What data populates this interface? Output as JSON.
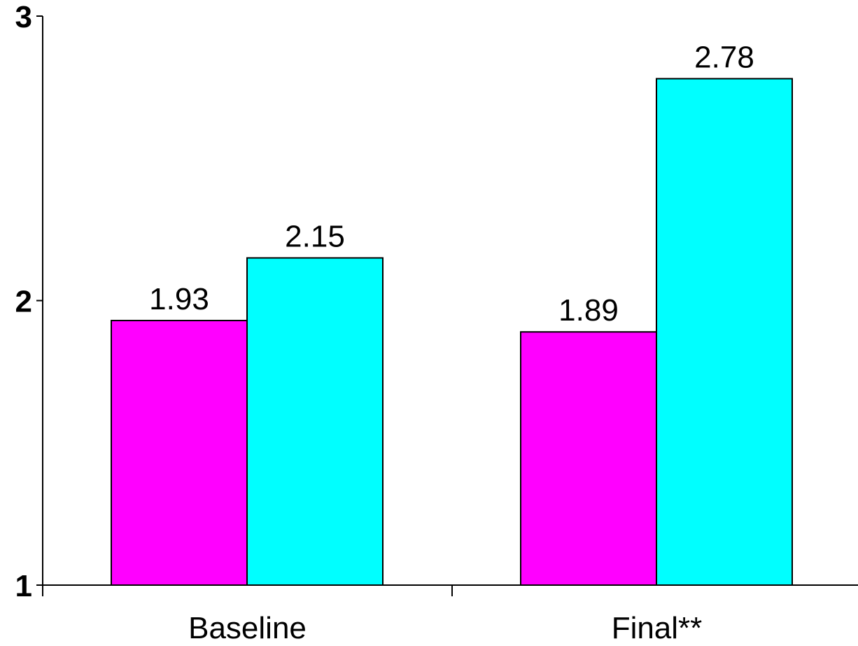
{
  "chart_data": {
    "type": "bar",
    "categories": [
      "Baseline",
      "Final**"
    ],
    "series": [
      {
        "values": [
          1.93,
          1.89
        ],
        "color": "#ff00ff"
      },
      {
        "values": [
          2.15,
          2.78
        ],
        "color": "#00ffff"
      }
    ],
    "title": "",
    "xlabel": "",
    "ylabel": "",
    "ylim": [
      1,
      3
    ],
    "yticks": [
      "1",
      "2",
      "3"
    ],
    "data_labels": [
      [
        "1.93",
        "1.89"
      ],
      [
        "2.15",
        "2.78"
      ]
    ],
    "grid": false,
    "legend": "none"
  }
}
